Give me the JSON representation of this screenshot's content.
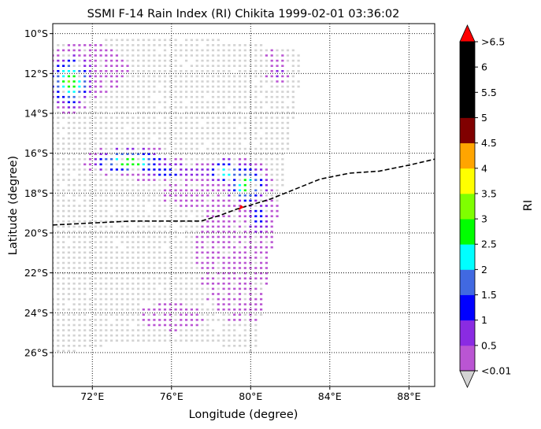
{
  "chart_data": {
    "type": "heatmap",
    "title": "SSMI F-14 Rain Index (RI) Chikita 1999-02-01 03:36:02",
    "xlabel": "Longitude (degree)",
    "ylabel": "Latitude (degree)",
    "xlim": [
      70,
      89.3
    ],
    "ylim": [
      -27.7,
      -9.5
    ],
    "x_ticks": [
      {
        "value": 72,
        "label": "72°E"
      },
      {
        "value": 76,
        "label": "76°E"
      },
      {
        "value": 80,
        "label": "80°E"
      },
      {
        "value": 84,
        "label": "84°E"
      },
      {
        "value": 88,
        "label": "88°E"
      }
    ],
    "y_ticks": [
      {
        "value": -10,
        "label": "10°S"
      },
      {
        "value": -12,
        "label": "12°S"
      },
      {
        "value": -14,
        "label": "14°S"
      },
      {
        "value": -16,
        "label": "16°S"
      },
      {
        "value": -18,
        "label": "18°S"
      },
      {
        "value": -20,
        "label": "20°S"
      },
      {
        "value": -22,
        "label": "22°S"
      },
      {
        "value": -24,
        "label": "24°S"
      },
      {
        "value": -26,
        "label": "26°S"
      }
    ],
    "grid": true,
    "colorbar": {
      "label": "RI",
      "levels": [
        0.01,
        0.5,
        1,
        1.5,
        2,
        2.5,
        3,
        3.5,
        4,
        4.5,
        5,
        5.5,
        6,
        6.5
      ],
      "colors": [
        "#ba55d3",
        "#8a2be2",
        "#0000ff",
        "#4169e1",
        "#00ffff",
        "#00ff00",
        "#7fff00",
        "#ffff00",
        "#ffa500",
        "#800000",
        "#000000",
        "#000000",
        "#000000"
      ],
      "under_color": "#d3d3d3",
      "over_color": "#ff0000",
      "tick_labels": [
        "<0.01",
        "0.5",
        "1",
        "1.5",
        "2",
        "2.5",
        "3",
        "3.5",
        "4",
        "4.5",
        "5",
        "5.5",
        "6",
        ">6.5"
      ]
    },
    "track": {
      "style": "dashed",
      "color": "#000000",
      "points": [
        [
          70,
          -19.6
        ],
        [
          72,
          -19.5
        ],
        [
          74,
          -19.4
        ],
        [
          77.5,
          -19.4
        ],
        [
          78.5,
          -19.1
        ],
        [
          79.3,
          -18.8
        ],
        [
          80,
          -18.6
        ],
        [
          81,
          -18.3
        ],
        [
          82,
          -17.9
        ],
        [
          83.5,
          -17.3
        ],
        [
          85,
          -17.0
        ],
        [
          86.5,
          -16.9
        ],
        [
          88,
          -16.6
        ],
        [
          89.3,
          -16.3
        ]
      ]
    },
    "storm_center": {
      "lon": 79.5,
      "lat": -18.75,
      "color": "#ff0000"
    },
    "swath": {
      "edge_top_lon": 82.9,
      "edge_bottom_lon": 80.2,
      "top_lat": -9.8,
      "bottom_lat": -26.2,
      "upper_arc_lat": -10.0,
      "lower_arc_lat": -25.6
    },
    "rain_clusters": [
      {
        "lon": 70.9,
        "lat": -12.4,
        "rx": 1.0,
        "ry": 1.1,
        "peak": 3.0
      },
      {
        "lon": 73.9,
        "lat": -16.4,
        "rx": 1.6,
        "ry": 0.55,
        "peak": 3.0
      },
      {
        "lon": 75.8,
        "lat": -16.9,
        "rx": 1.4,
        "ry": 0.45,
        "peak": 1.3
      },
      {
        "lon": 77.4,
        "lat": -17.0,
        "rx": 1.0,
        "ry": 0.4,
        "peak": 0.9
      },
      {
        "lon": 78.8,
        "lat": -16.9,
        "rx": 1.0,
        "ry": 0.55,
        "peak": 2.3
      },
      {
        "lon": 79.8,
        "lat": -17.6,
        "rx": 0.9,
        "ry": 0.9,
        "peak": 2.8
      },
      {
        "lon": 80.4,
        "lat": -19.2,
        "rx": 0.6,
        "ry": 1.0,
        "peak": 1.2
      },
      {
        "lon": 79.6,
        "lat": -21.0,
        "rx": 1.6,
        "ry": 2.4,
        "peak": 0.2
      },
      {
        "lon": 77.0,
        "lat": -18.0,
        "rx": 1.0,
        "ry": 0.6,
        "peak": 0.2
      },
      {
        "lon": 82.5,
        "lat": -10.3,
        "rx": 0.5,
        "ry": 0.4,
        "peak": 0.8
      },
      {
        "lon": 81.4,
        "lat": -12.0,
        "rx": 0.5,
        "ry": 0.3,
        "peak": 0.7
      },
      {
        "lon": 71.6,
        "lat": -11.8,
        "rx": 1.5,
        "ry": 0.9,
        "peak": 0.2
      },
      {
        "lon": 76.0,
        "lat": -24.2,
        "rx": 1.2,
        "ry": 0.5,
        "peak": 0.1
      },
      {
        "lon": 81.2,
        "lat": -11.2,
        "rx": 0.4,
        "ry": 0.3,
        "peak": 0.1
      }
    ]
  }
}
